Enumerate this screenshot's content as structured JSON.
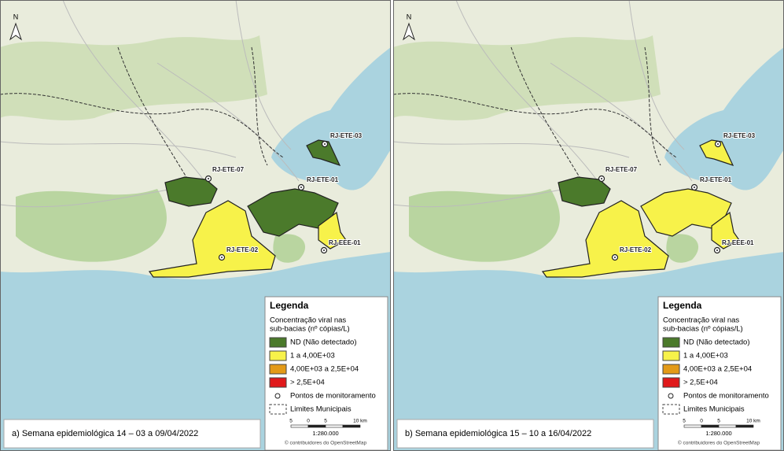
{
  "panels": [
    {
      "caption": "a) Semana epidemiológica 14 – 03 a 09/04/2022",
      "north": "N",
      "stations": [
        {
          "label": "RJ-ETE-03",
          "color": "#4b7a2b"
        },
        {
          "label": "RJ-ETE-07",
          "color": "#4b7a2b"
        },
        {
          "label": "RJ-ETE-01",
          "color": "#4b7a2b"
        },
        {
          "label": "RJ-ETE-02",
          "color": "#f7f24a"
        },
        {
          "label": "RJ-EEE-01",
          "color": "#f7f24a"
        }
      ],
      "legend": {
        "title": "Legenda",
        "subtitle_lines": [
          "Concentração viral nas",
          "sub-bacias (nº cópias/L)"
        ],
        "items": [
          {
            "label": "ND (Não detectado)",
            "color": "#4b7a2b"
          },
          {
            "label": "1 a 4,00E+03",
            "color": "#f7f24a"
          },
          {
            "label": "4,00E+03 a 2,5E+04",
            "color": "#e39a17"
          },
          {
            "label": "> 2,5E+04",
            "color": "#e0191b"
          }
        ],
        "points": "Pontos de monitoramento",
        "limits": "Limites Municipais",
        "scale_labels": [
          "5",
          "0",
          "5",
          "10 km"
        ],
        "scale": "1:280.000",
        "credit": "© contribuidores do OpenStreetMap"
      }
    },
    {
      "caption": "b) Semana epidemiológica 15 – 10 a 16/04/2022",
      "north": "N",
      "stations": [
        {
          "label": "RJ-ETE-03",
          "color": "#f7f24a"
        },
        {
          "label": "RJ-ETE-07",
          "color": "#4b7a2b"
        },
        {
          "label": "RJ-ETE-01",
          "color": "#f7f24a"
        },
        {
          "label": "RJ-ETE-02",
          "color": "#f7f24a"
        },
        {
          "label": "RJ-EEE-01",
          "color": "#f7f24a"
        }
      ],
      "legend": {
        "title": "Legenda",
        "subtitle_lines": [
          "Concentração viral nas",
          "sub-bacias (nº cópias/L)"
        ],
        "items": [
          {
            "label": "ND (Não detectado)",
            "color": "#4b7a2b"
          },
          {
            "label": "1 a 4,00E+03",
            "color": "#f7f24a"
          },
          {
            "label": "4,00E+03 a 2,5E+04",
            "color": "#e39a17"
          },
          {
            "label": "> 2,5E+04",
            "color": "#e0191b"
          }
        ],
        "points": "Pontos de monitoramento",
        "limits": "Limites Municipais",
        "scale_labels": [
          "5",
          "0",
          "5",
          "10 km"
        ],
        "scale": "1:280.000",
        "credit": "© contribuidores do OpenStreetMap"
      }
    }
  ]
}
